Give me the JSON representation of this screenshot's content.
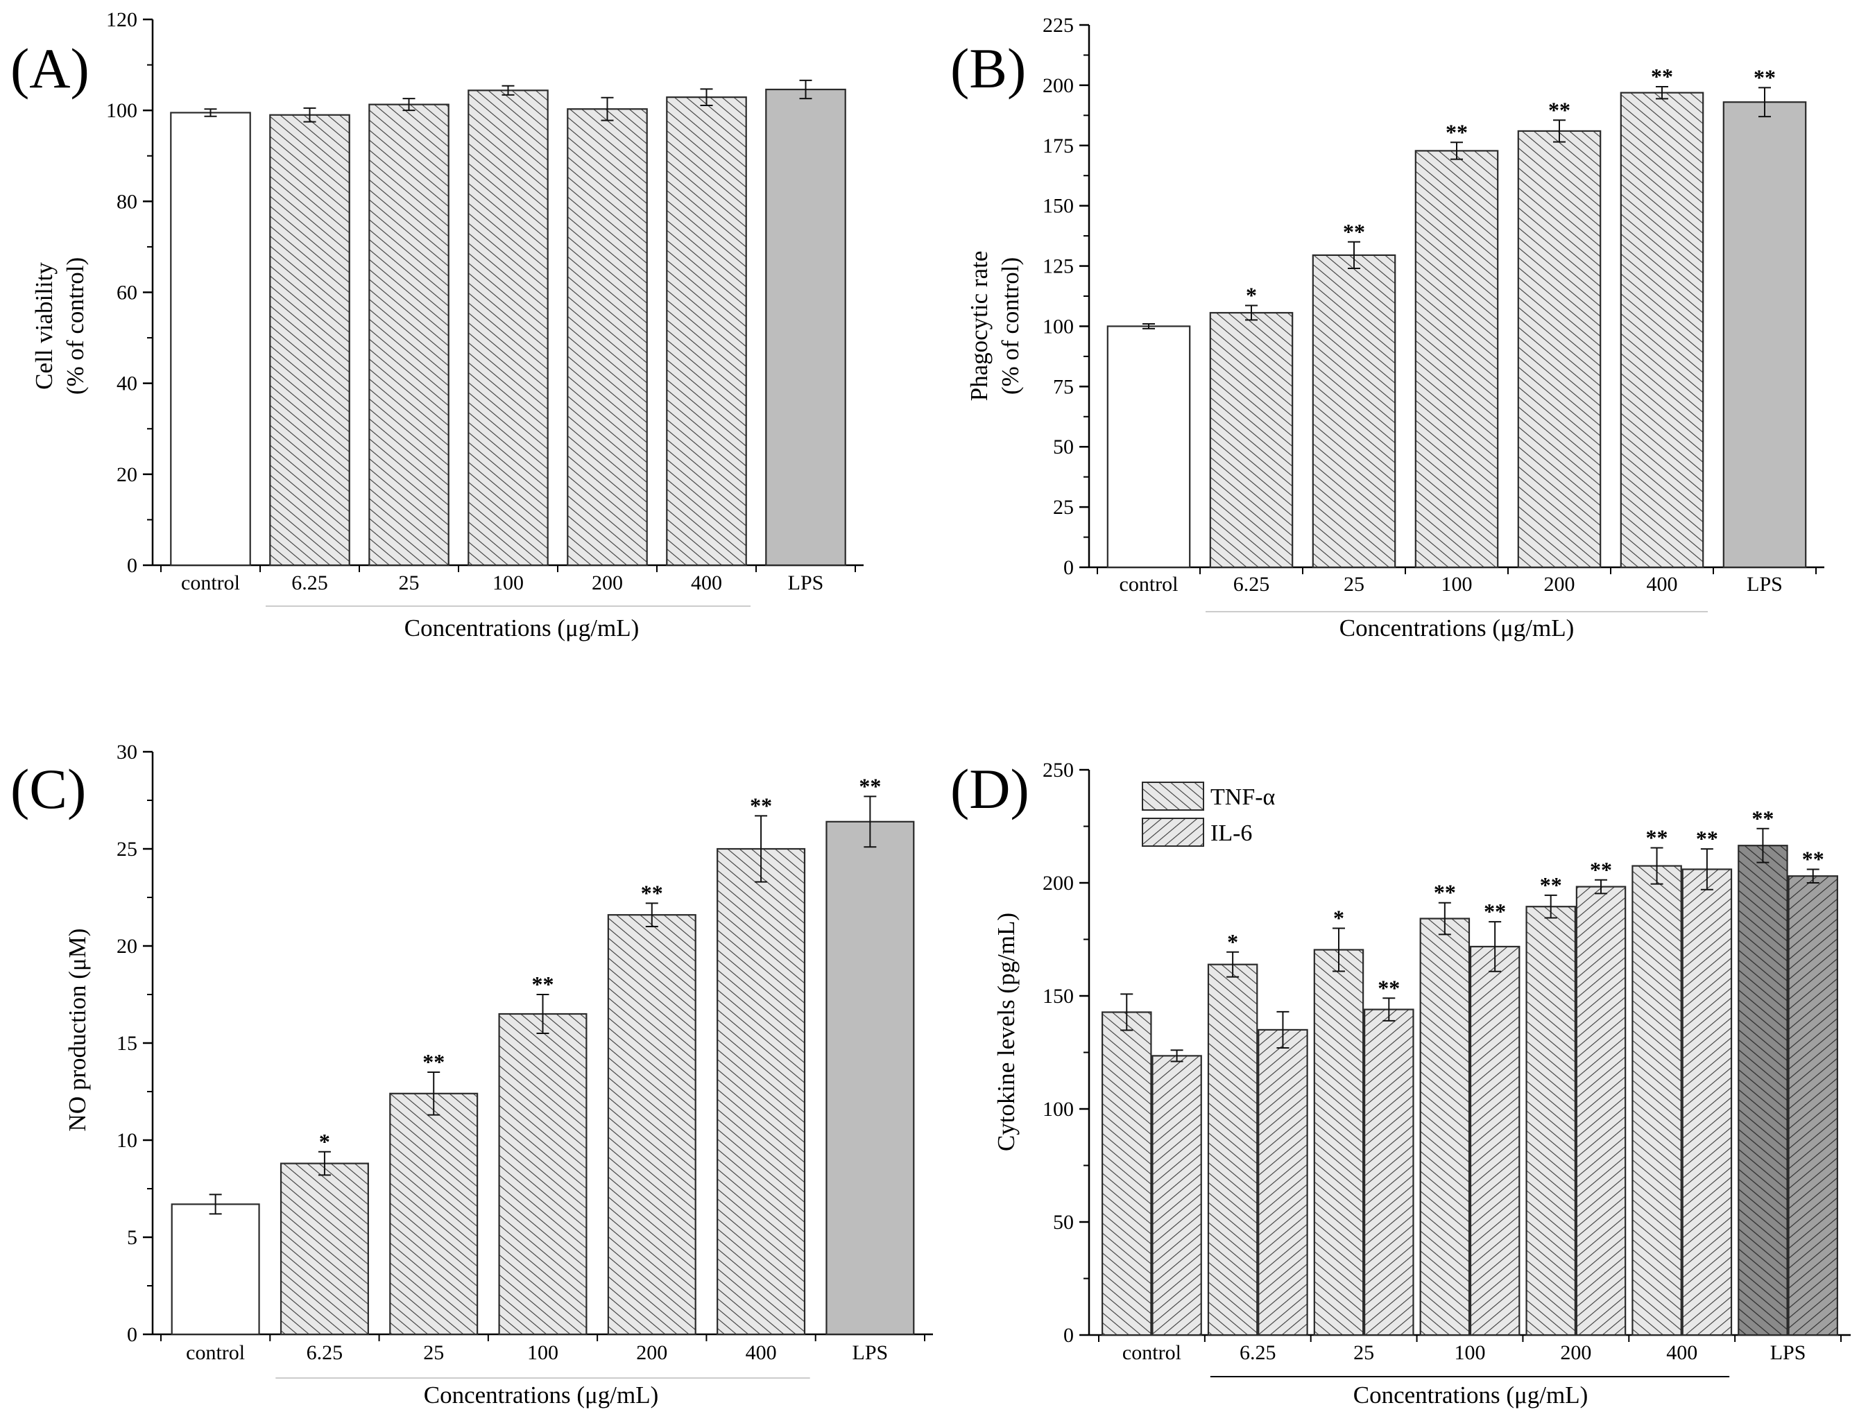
{
  "figure": {
    "description_hidden": false,
    "panels_count": 4
  },
  "colors": {
    "axis": "#000000",
    "bar_outline": "#2a2a2a",
    "control_fill": "#ffffff",
    "hatch_fill": "#e6e6e6",
    "hatch_line": "#3a3a3a",
    "lps_fill": "#bdbdbd",
    "lps_d_fill": "#8c8c8c"
  },
  "chart_data": [
    {
      "panel": "(A)",
      "type": "bar",
      "categories": [
        "control",
        "6.25",
        "25",
        "100",
        "200",
        "400",
        "LPS"
      ],
      "values": [
        99.5,
        99.0,
        101.3,
        104.4,
        100.3,
        102.9,
        104.6
      ],
      "errors": [
        0.8,
        1.5,
        1.3,
        1.0,
        2.5,
        1.8,
        2.0
      ],
      "significance": [
        "",
        "",
        "",
        "",
        "",
        "",
        ""
      ],
      "fills": [
        "white",
        "hatch",
        "hatch",
        "hatch",
        "hatch",
        "hatch",
        "gray"
      ],
      "ylabel_line1": "Cell viability",
      "ylabel_line2": "(% of control)",
      "xlabel": "Concentrations (μg/mL)",
      "ylim": [
        0,
        120
      ],
      "yticks": [
        0,
        20,
        40,
        60,
        80,
        100,
        120
      ]
    },
    {
      "panel": "(B)",
      "type": "bar",
      "categories": [
        "control",
        "6.25",
        "25",
        "100",
        "200",
        "400",
        "LPS"
      ],
      "values": [
        100.0,
        105.6,
        129.5,
        172.8,
        181.0,
        196.9,
        193.0
      ],
      "errors": [
        1.0,
        3.0,
        5.5,
        3.5,
        4.5,
        2.5,
        6.0
      ],
      "significance": [
        "",
        "*",
        "**",
        "**",
        "**",
        "**",
        "**"
      ],
      "fills": [
        "white",
        "hatch",
        "hatch",
        "hatch",
        "hatch",
        "hatch",
        "gray"
      ],
      "ylabel_line1": "Phagocytic rate",
      "ylabel_line2": "(% of control)",
      "xlabel": "Concentrations (μg/mL)",
      "ylim": [
        0,
        225
      ],
      "yticks": [
        0,
        25,
        50,
        75,
        100,
        125,
        150,
        175,
        200,
        225
      ]
    },
    {
      "panel": "(C)",
      "type": "bar",
      "categories": [
        "control",
        "6.25",
        "25",
        "100",
        "200",
        "400",
        "LPS"
      ],
      "values": [
        6.7,
        8.8,
        12.4,
        16.5,
        21.6,
        25.0,
        26.4
      ],
      "errors": [
        0.5,
        0.6,
        1.1,
        1.0,
        0.6,
        1.7,
        1.3
      ],
      "significance": [
        "",
        "*",
        "**",
        "**",
        "**",
        "**",
        "**"
      ],
      "fills": [
        "white",
        "hatch",
        "hatch",
        "hatch",
        "hatch",
        "hatch",
        "gray"
      ],
      "ylabel_line1": "NO production (μM)",
      "ylabel_line2": "",
      "xlabel": "Concentrations (μg/mL)",
      "ylim": [
        0,
        30
      ],
      "yticks": [
        0,
        5,
        10,
        15,
        20,
        25,
        30
      ]
    },
    {
      "panel": "(D)",
      "type": "bar",
      "categories": [
        "control",
        "6.25",
        "25",
        "100",
        "200",
        "400",
        "LPS"
      ],
      "series": [
        {
          "name": "TNF-α",
          "values": [
            142.8,
            163.9,
            170.4,
            184.2,
            189.5,
            207.5,
            216.5
          ],
          "errors": [
            8.0,
            5.5,
            9.5,
            7.0,
            5.0,
            8.0,
            7.5
          ],
          "significance": [
            "",
            "*",
            "*",
            "**",
            "**",
            "**",
            "**"
          ]
        },
        {
          "name": "IL-6",
          "values": [
            123.5,
            135.0,
            144.0,
            171.8,
            198.3,
            206.0,
            203.0
          ],
          "errors": [
            2.5,
            8.0,
            5.0,
            11.0,
            3.0,
            9.0,
            3.0
          ],
          "significance": [
            "",
            "",
            "**",
            "**",
            "**",
            "**",
            "**"
          ]
        }
      ],
      "ylabel_line1": "Cytokine levels (pg/mL)",
      "ylabel_line2": "",
      "xlabel": "Concentrations (μg/mL)",
      "ylim": [
        0,
        250
      ],
      "yticks": [
        0,
        50,
        100,
        150,
        200,
        250
      ],
      "legend": [
        "TNF-α",
        "IL-6"
      ]
    }
  ]
}
